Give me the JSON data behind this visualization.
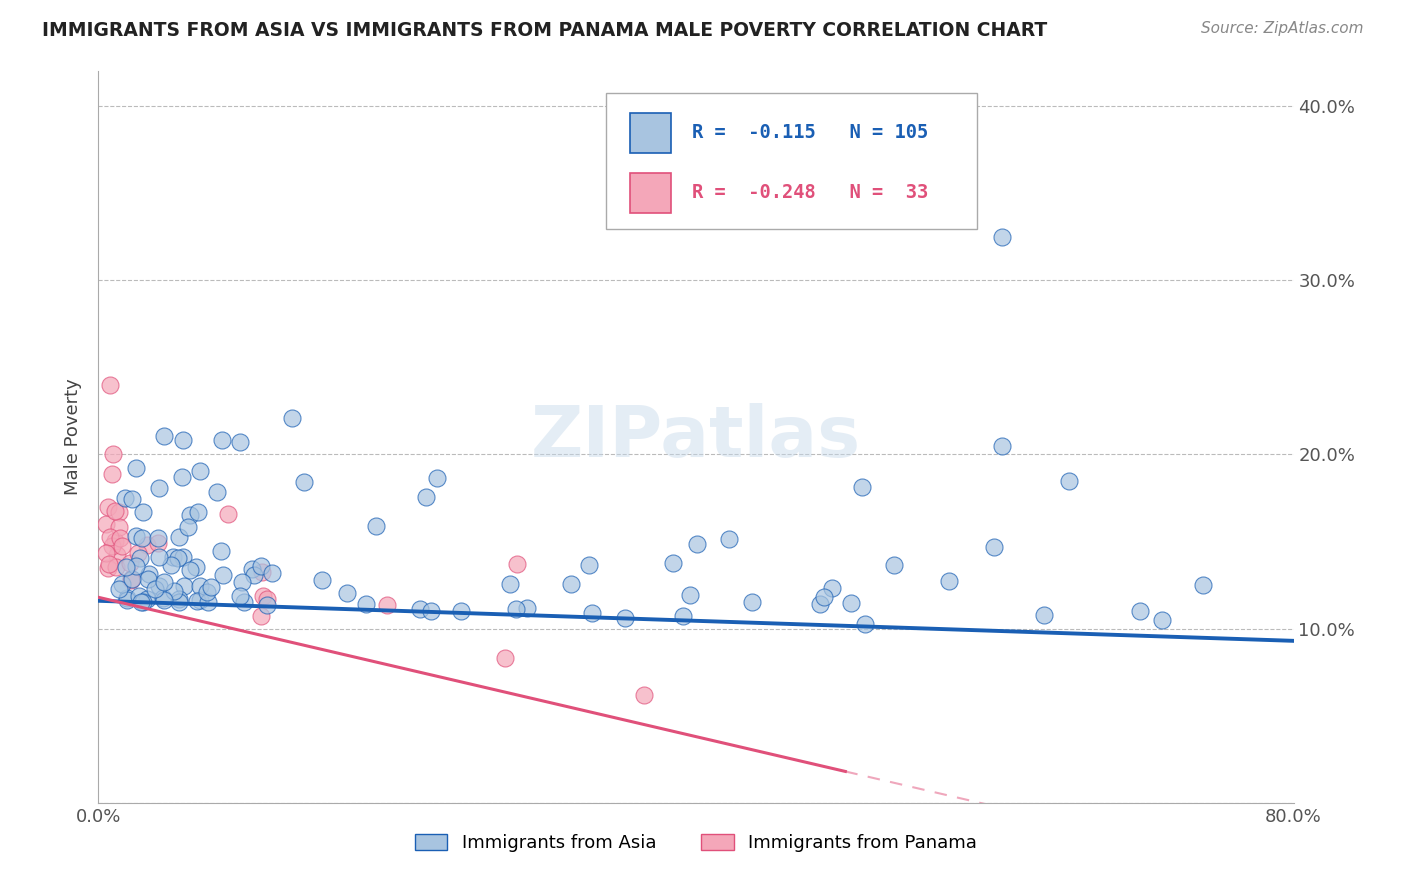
{
  "title": "IMMIGRANTS FROM ASIA VS IMMIGRANTS FROM PANAMA MALE POVERTY CORRELATION CHART",
  "source": "Source: ZipAtlas.com",
  "ylabel": "Male Poverty",
  "xlim": [
    0.0,
    0.8
  ],
  "ylim": [
    0.0,
    0.42
  ],
  "x_ticks": [
    0.0,
    0.1,
    0.2,
    0.3,
    0.4,
    0.5,
    0.6,
    0.7,
    0.8
  ],
  "x_tick_labels": [
    "0.0%",
    "",
    "",
    "",
    "",
    "",
    "",
    "",
    "80.0%"
  ],
  "y_ticks": [
    0.0,
    0.1,
    0.2,
    0.3,
    0.4
  ],
  "y_tick_labels": [
    "",
    "10.0%",
    "20.0%",
    "30.0%",
    "40.0%"
  ],
  "legend1_r": "-0.115",
  "legend1_n": "105",
  "legend2_r": "-0.248",
  "legend2_n": "33",
  "color_asia": "#a8c4e0",
  "color_panama": "#f4a7b9",
  "line_color_asia": "#1a5fb4",
  "line_color_panama": "#e0507a",
  "legend_label_asia": "Immigrants from Asia",
  "legend_label_panama": "Immigrants from Panama",
  "watermark": "ZIPatlas",
  "asia_line_start_y": 0.116,
  "asia_line_end_y": 0.093,
  "panama_line_start_y": 0.118,
  "panama_line_end_y": 0.018,
  "panama_line_x_end": 0.5
}
